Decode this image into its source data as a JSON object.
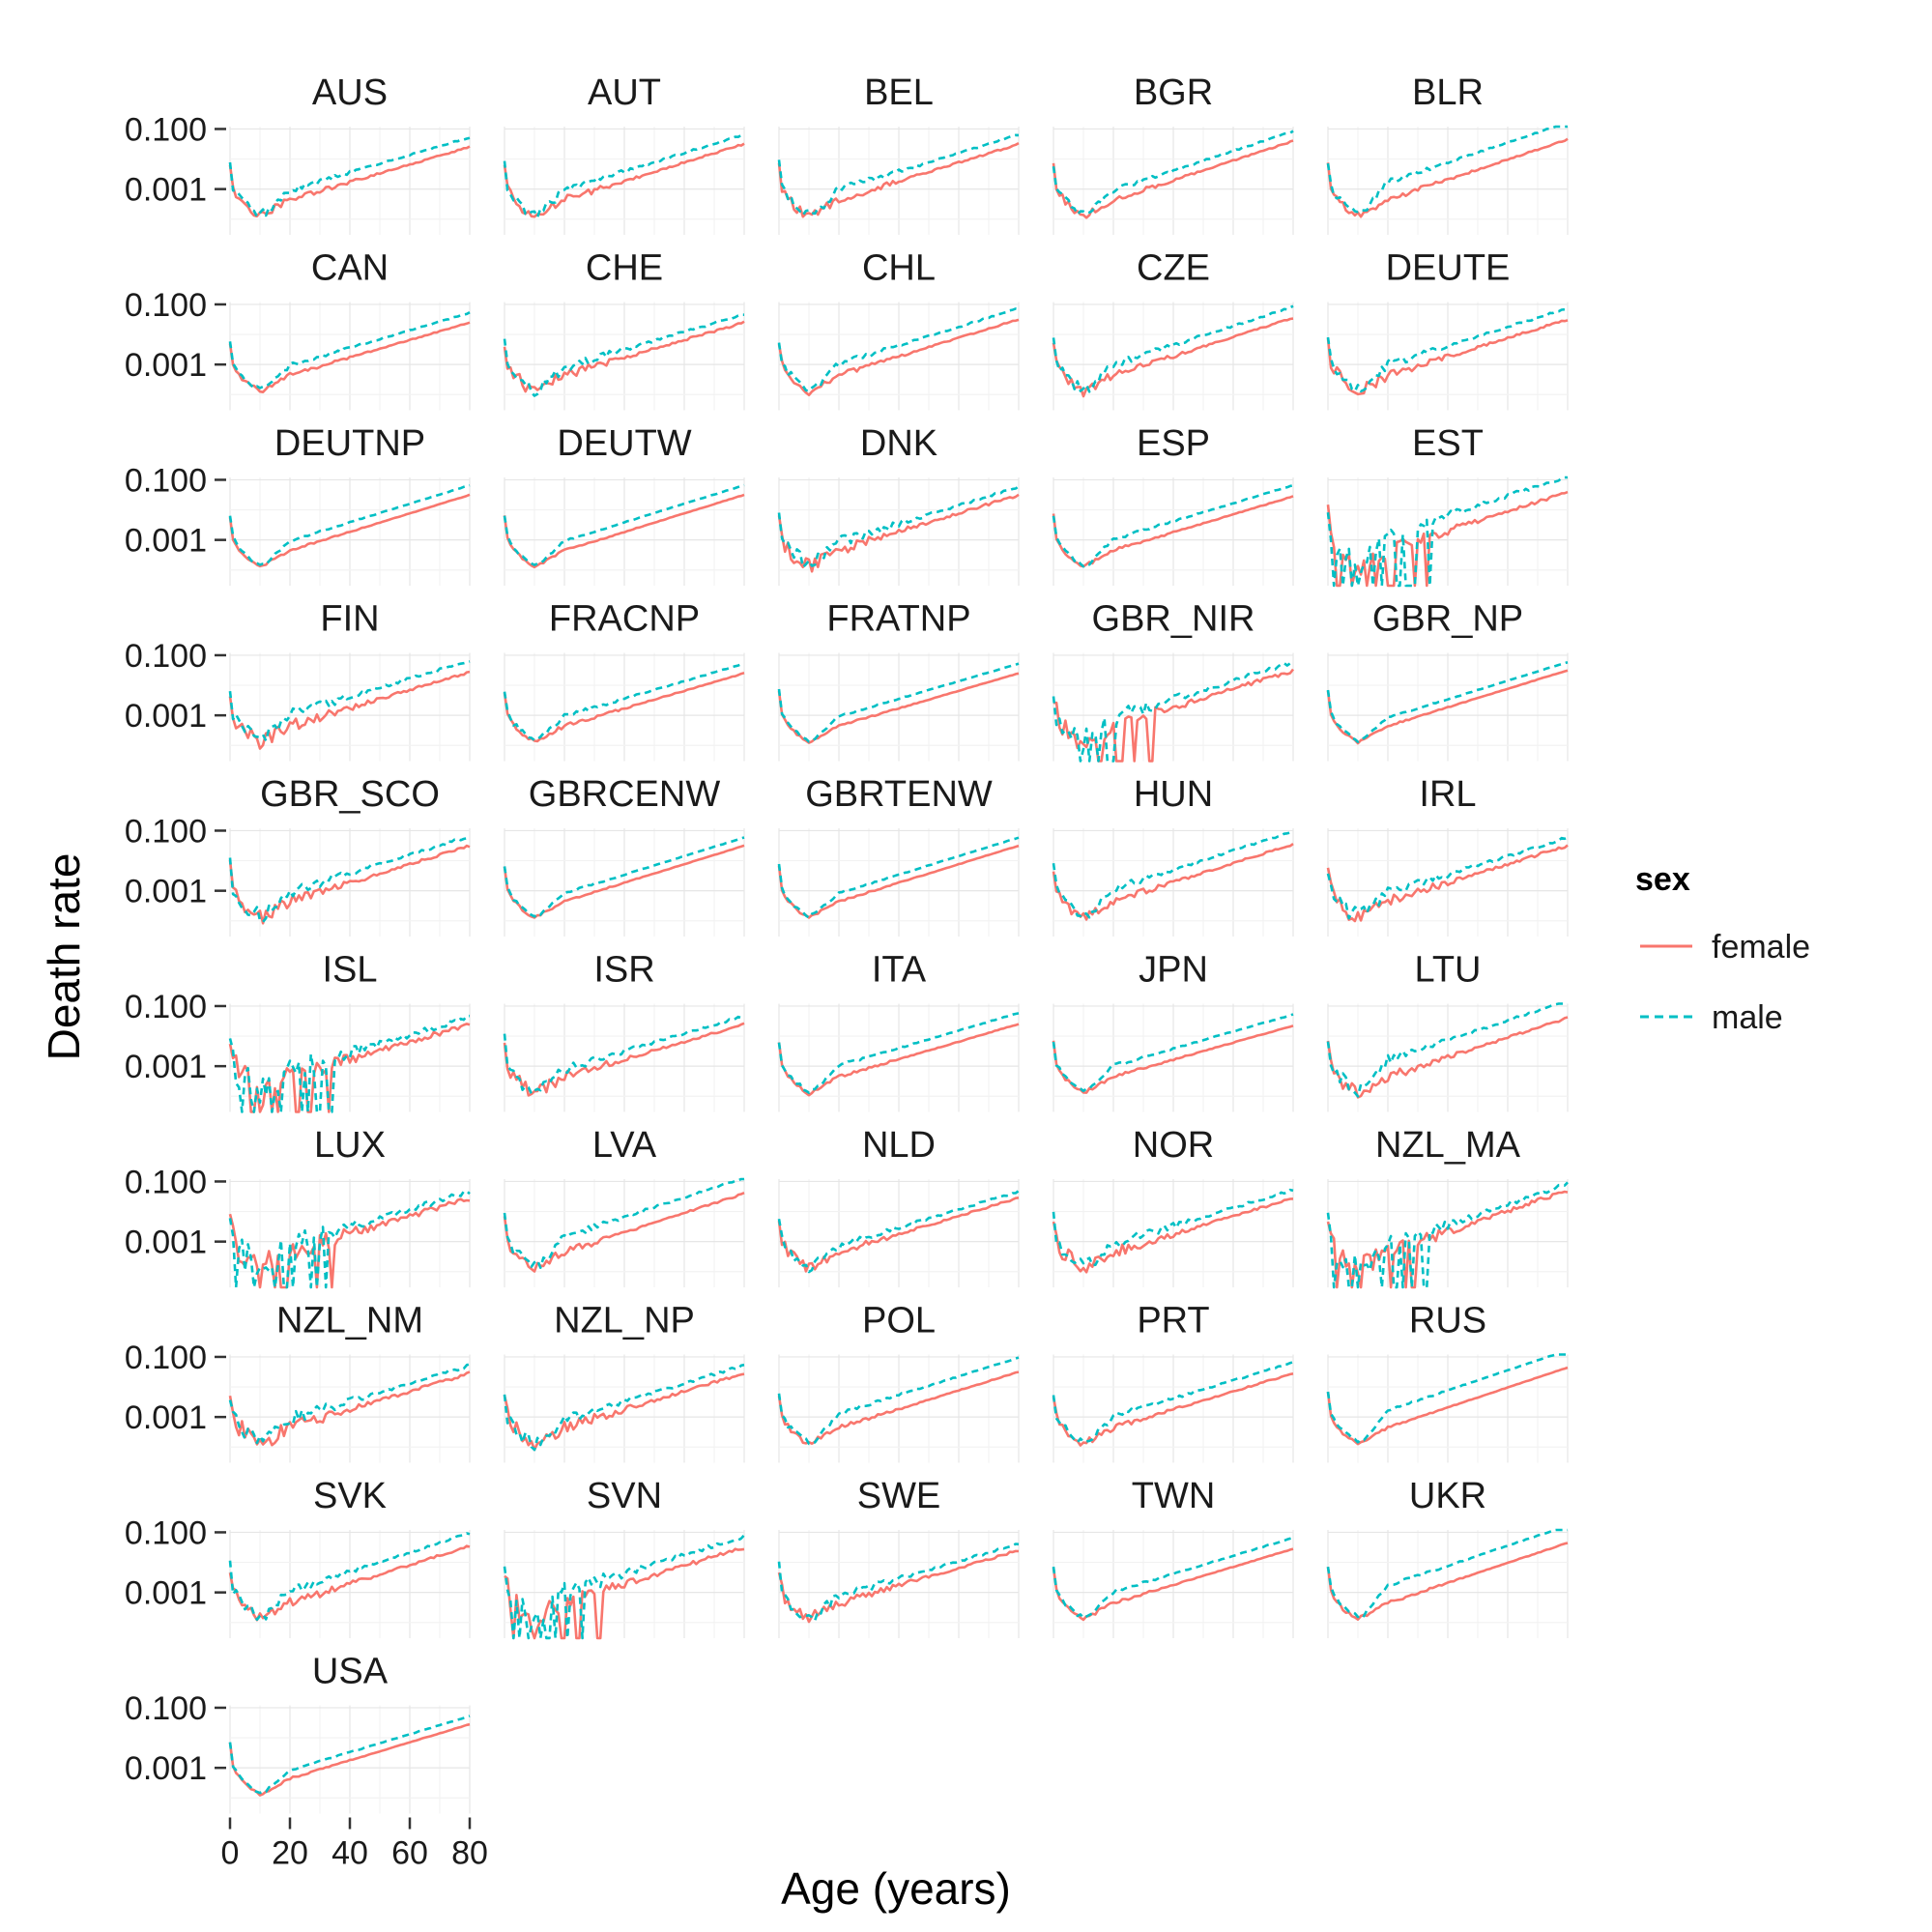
{
  "chart_data": {
    "type": "line",
    "layout": "faceted small multiples, 5 columns",
    "xlabel": "Age (years)",
    "ylabel": "Death rate",
    "xlim": [
      0,
      80
    ],
    "x_ticks": [
      0,
      20,
      40,
      60,
      80
    ],
    "x_tick_labels": [
      "0",
      "20",
      "40",
      "60",
      "80"
    ],
    "y_scale": "log10",
    "ylim": [
      3e-05,
      0.12
    ],
    "y_ticks": [
      0.1,
      0.001
    ],
    "y_tick_labels": [
      "0.100",
      "0.001"
    ],
    "grid": true,
    "legend": {
      "title": "sex",
      "position": "right",
      "items": [
        {
          "label": "female",
          "color": "#F8766D",
          "linetype": "solid"
        },
        {
          "label": "male",
          "color": "#00BFC4",
          "linetype": "dashed"
        }
      ]
    },
    "curve_model": {
      "note": "approximate log10 death rate by age, shared by all panels; per-panel shifts below",
      "infant_log10": -2.2,
      "child_min_log10": -3.9,
      "adult_log10_at_20": -3.35,
      "adult_log10_at_80": -1.5,
      "male_excess_log10": 0.3
    },
    "panels": [
      {
        "name": "AUS",
        "noise": 0.15,
        "zero_runs": false,
        "male_shift": 0.3,
        "end_shift": -0.1
      },
      {
        "name": "AUT",
        "noise": 0.2,
        "zero_runs": false,
        "male_shift": 0.3,
        "end_shift": 0.0
      },
      {
        "name": "BEL",
        "noise": 0.2,
        "zero_runs": false,
        "male_shift": 0.3,
        "end_shift": 0.0
      },
      {
        "name": "BGR",
        "noise": 0.15,
        "zero_runs": false,
        "male_shift": 0.3,
        "end_shift": 0.1
      },
      {
        "name": "BLR",
        "noise": 0.15,
        "zero_runs": false,
        "male_shift": 0.55,
        "end_shift": 0.15
      },
      {
        "name": "CAN",
        "noise": 0.1,
        "zero_runs": false,
        "male_shift": 0.3,
        "end_shift": -0.1
      },
      {
        "name": "CHE",
        "noise": 0.25,
        "zero_runs": false,
        "male_shift": 0.25,
        "end_shift": -0.1
      },
      {
        "name": "CHL",
        "noise": 0.15,
        "zero_runs": false,
        "male_shift": 0.35,
        "end_shift": 0.0
      },
      {
        "name": "CZE",
        "noise": 0.2,
        "zero_runs": false,
        "male_shift": 0.35,
        "end_shift": 0.05
      },
      {
        "name": "DEUTE",
        "noise": 0.25,
        "zero_runs": false,
        "male_shift": 0.35,
        "end_shift": 0.0
      },
      {
        "name": "DEUTNP",
        "noise": 0.05,
        "zero_runs": false,
        "male_shift": 0.3,
        "end_shift": 0.0
      },
      {
        "name": "DEUTW",
        "noise": 0.05,
        "zero_runs": false,
        "male_shift": 0.3,
        "end_shift": 0.0
      },
      {
        "name": "DNK",
        "noise": 0.3,
        "zero_runs": false,
        "male_shift": 0.25,
        "end_shift": 0.0
      },
      {
        "name": "ESP",
        "noise": 0.08,
        "zero_runs": false,
        "male_shift": 0.35,
        "end_shift": -0.05
      },
      {
        "name": "EST",
        "noise": 0.4,
        "zero_runs": true,
        "male_shift": 0.5,
        "end_shift": 0.1
      },
      {
        "name": "FIN",
        "noise": 0.3,
        "zero_runs": false,
        "male_shift": 0.35,
        "end_shift": -0.05
      },
      {
        "name": "FRACNP",
        "noise": 0.1,
        "zero_runs": false,
        "male_shift": 0.3,
        "end_shift": -0.1
      },
      {
        "name": "FRATNP",
        "noise": 0.05,
        "zero_runs": false,
        "male_shift": 0.3,
        "end_shift": -0.1
      },
      {
        "name": "GBR_NIR",
        "noise": 0.45,
        "zero_runs": true,
        "male_shift": 0.25,
        "end_shift": 0.0
      },
      {
        "name": "GBR_NP",
        "noise": 0.05,
        "zero_runs": false,
        "male_shift": 0.25,
        "end_shift": 0.0
      },
      {
        "name": "GBR_SCO",
        "noise": 0.3,
        "zero_runs": false,
        "male_shift": 0.3,
        "end_shift": 0.0
      },
      {
        "name": "GBRCENW",
        "noise": 0.05,
        "zero_runs": false,
        "male_shift": 0.25,
        "end_shift": 0.0
      },
      {
        "name": "GBRTENW",
        "noise": 0.05,
        "zero_runs": false,
        "male_shift": 0.25,
        "end_shift": 0.0
      },
      {
        "name": "HUN",
        "noise": 0.2,
        "zero_runs": false,
        "male_shift": 0.4,
        "end_shift": 0.05
      },
      {
        "name": "IRL",
        "noise": 0.3,
        "zero_runs": false,
        "male_shift": 0.25,
        "end_shift": 0.0
      },
      {
        "name": "ISL",
        "noise": 0.6,
        "zero_runs": true,
        "male_shift": 0.2,
        "end_shift": -0.1
      },
      {
        "name": "ISR",
        "noise": 0.25,
        "zero_runs": false,
        "male_shift": 0.25,
        "end_shift": -0.1
      },
      {
        "name": "ITA",
        "noise": 0.08,
        "zero_runs": false,
        "male_shift": 0.35,
        "end_shift": -0.1
      },
      {
        "name": "JPN",
        "noise": 0.08,
        "zero_runs": false,
        "male_shift": 0.35,
        "end_shift": -0.15
      },
      {
        "name": "LTU",
        "noise": 0.25,
        "zero_runs": false,
        "male_shift": 0.55,
        "end_shift": 0.1
      },
      {
        "name": "LUX",
        "noise": 0.6,
        "zero_runs": true,
        "male_shift": 0.2,
        "end_shift": -0.05
      },
      {
        "name": "LVA",
        "noise": 0.2,
        "zero_runs": false,
        "male_shift": 0.5,
        "end_shift": 0.1
      },
      {
        "name": "NLD",
        "noise": 0.2,
        "zero_runs": false,
        "male_shift": 0.2,
        "end_shift": -0.05
      },
      {
        "name": "NOR",
        "noise": 0.3,
        "zero_runs": false,
        "male_shift": 0.25,
        "end_shift": -0.05
      },
      {
        "name": "NZL_MA",
        "noise": 0.45,
        "zero_runs": true,
        "male_shift": 0.2,
        "end_shift": 0.2
      },
      {
        "name": "NZL_NM",
        "noise": 0.35,
        "zero_runs": false,
        "male_shift": 0.25,
        "end_shift": -0.05
      },
      {
        "name": "NZL_NP",
        "noise": 0.3,
        "zero_runs": false,
        "male_shift": 0.25,
        "end_shift": -0.05
      },
      {
        "name": "POL",
        "noise": 0.1,
        "zero_runs": false,
        "male_shift": 0.45,
        "end_shift": 0.0
      },
      {
        "name": "PRT",
        "noise": 0.15,
        "zero_runs": false,
        "male_shift": 0.35,
        "end_shift": -0.05
      },
      {
        "name": "RUS",
        "noise": 0.05,
        "zero_runs": false,
        "male_shift": 0.55,
        "end_shift": 0.15
      },
      {
        "name": "SVK",
        "noise": 0.25,
        "zero_runs": false,
        "male_shift": 0.4,
        "end_shift": 0.05
      },
      {
        "name": "SVN",
        "noise": 0.45,
        "zero_runs": true,
        "male_shift": 0.35,
        "end_shift": 0.0
      },
      {
        "name": "SWE",
        "noise": 0.25,
        "zero_runs": false,
        "male_shift": 0.2,
        "end_shift": -0.1
      },
      {
        "name": "TWN",
        "noise": 0.08,
        "zero_runs": false,
        "male_shift": 0.35,
        "end_shift": -0.05
      },
      {
        "name": "UKR",
        "noise": 0.08,
        "zero_runs": false,
        "male_shift": 0.55,
        "end_shift": 0.15
      },
      {
        "name": "USA",
        "noise": 0.05,
        "zero_runs": false,
        "male_shift": 0.25,
        "end_shift": -0.05
      }
    ]
  }
}
